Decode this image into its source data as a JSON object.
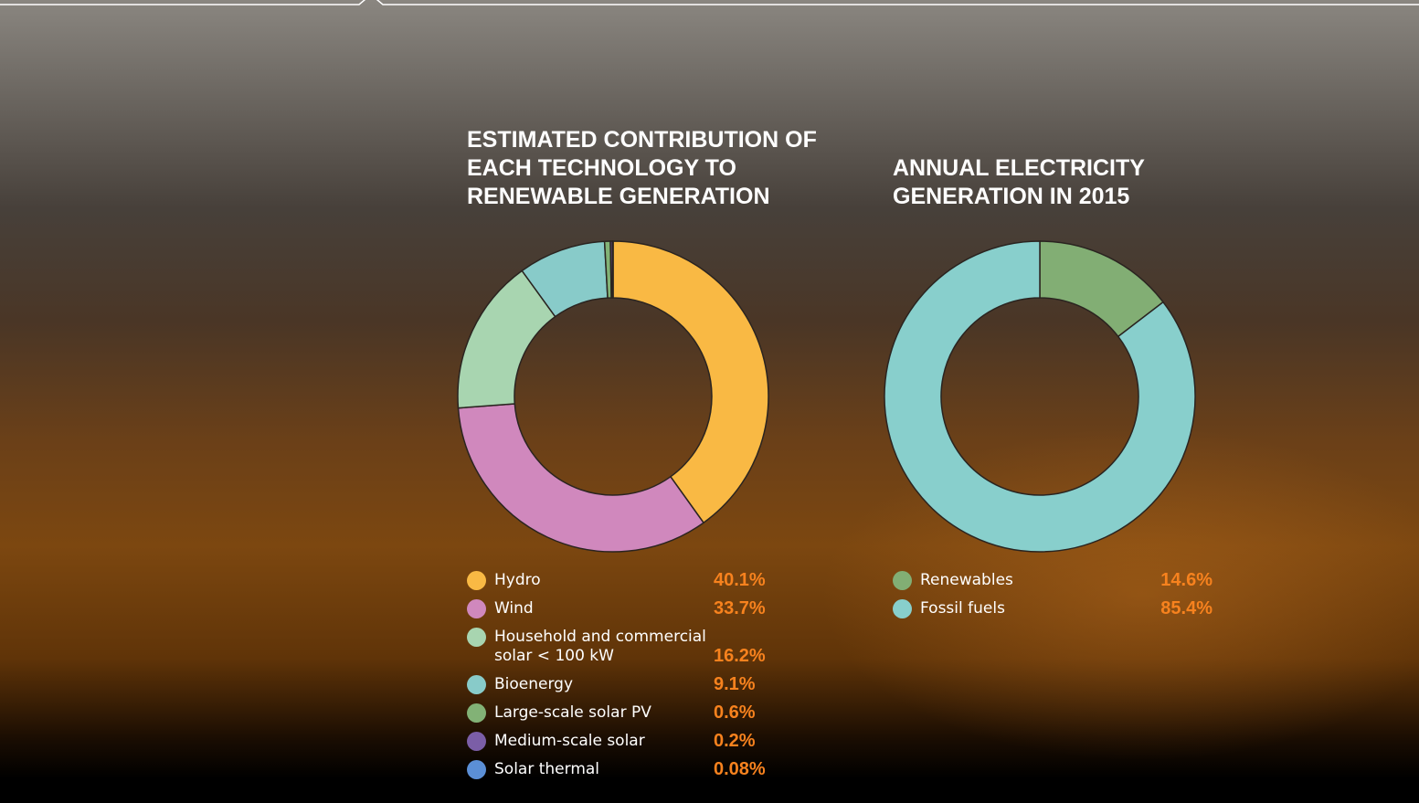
{
  "chart_data": [
    {
      "type": "donut",
      "title": "ESTIMATED CONTRIBUTION OF EACH TECHNOLOGY TO RENEWABLE GENERATION",
      "categories": [
        "Hydro",
        "Wind",
        "Household and commercial solar < 100 kW",
        "Bioenergy",
        "Large-scale solar PV",
        "Medium-scale solar",
        "Solar thermal"
      ],
      "values": [
        40.1,
        33.7,
        16.2,
        9.1,
        0.6,
        0.2,
        0.08
      ],
      "value_labels": [
        "40.1%",
        "33.7%",
        "16.2%",
        "9.1%",
        "0.6%",
        "0.2%",
        "0.08%"
      ],
      "colors": [
        "#f9b944",
        "#d088bd",
        "#a8d5b0",
        "#88cbc9",
        "#82b276",
        "#7b5ea7",
        "#5b8fd6"
      ]
    },
    {
      "type": "donut",
      "title": "ANNUAL ELECTRICITY GENERATION IN 2015",
      "categories": [
        "Renewables",
        "Fossil fuels"
      ],
      "values": [
        14.6,
        85.4
      ],
      "value_labels": [
        "14.6%",
        "85.4%"
      ],
      "colors": [
        "#82ae74",
        "#88cfcc"
      ]
    }
  ]
}
